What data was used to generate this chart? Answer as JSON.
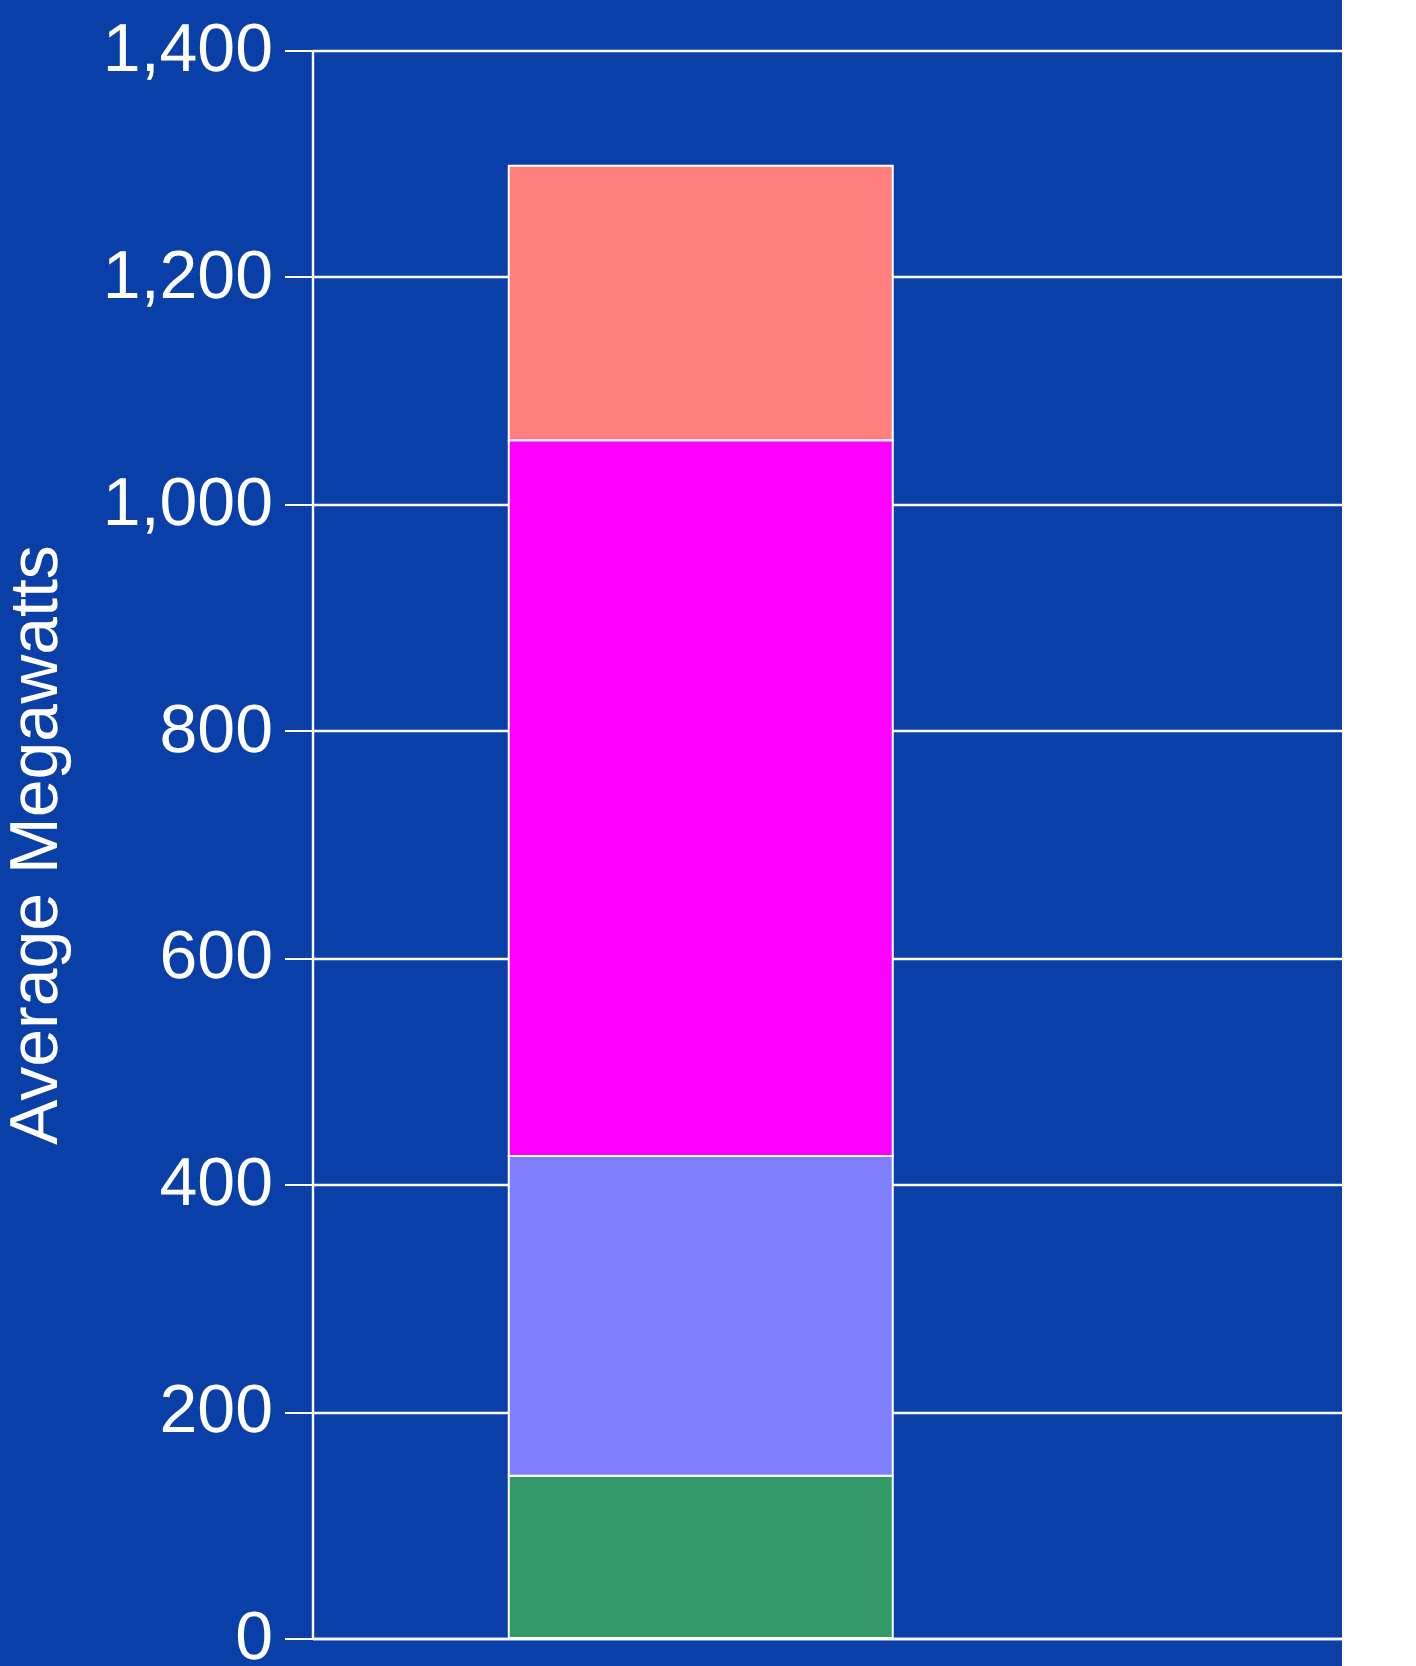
{
  "chart_data": {
    "type": "bar",
    "stacked": true,
    "ylabel": "Average Megawatts",
    "categories": [
      null
    ],
    "series": [
      {
        "color": "#339966",
        "values": [
          143
        ]
      },
      {
        "color": "#8080ff",
        "values": [
          282
        ]
      },
      {
        "color": "#ff00ff",
        "values": [
          631
        ]
      },
      {
        "color": "#ff7f7f",
        "values": [
          242
        ]
      }
    ],
    "ylim": [
      0,
      1400
    ],
    "yticks": [
      0,
      200,
      400,
      600,
      800,
      {
        "value": 1000,
        "label": "1,000"
      },
      {
        "value": 1200,
        "label": "1,200"
      },
      {
        "value": 1400,
        "label": "1,400"
      }
    ],
    "grid": "y"
  }
}
